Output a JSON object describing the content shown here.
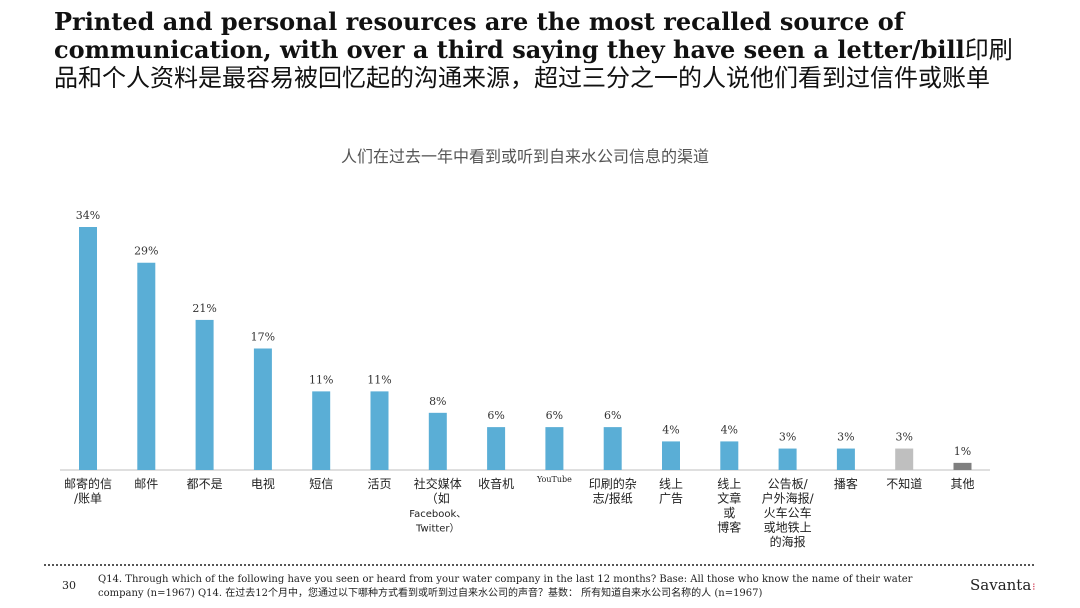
{
  "slide": {
    "title_en": "Printed and personal resources are the most recalled source of communication, with over a third saying they have seen a letter/bill",
    "title_zh": "印刷品和个人资料是最容易被回忆起的沟通来源，超过三分之一的人说他们看到过信件或账单",
    "page_number": "30",
    "footnote": "Q14. Through which of the following have you seen or heard from your water company in the last 12 months? Base: All those who know the name of their water company (n=1967) Q14. 在过去12个月中，您通过以下哪种方式看到或听到过自来水公司的声音？基数： 所有知道自来水公司名称的人 (n=1967)",
    "logo": "Savanta",
    "logo_mark": "⁝"
  },
  "chart_data": {
    "type": "bar",
    "title": "人们在过去一年中看到或听到自来水公司信息的渠道",
    "xlabel": "",
    "ylabel": "",
    "ylim": [
      0,
      34
    ],
    "grid": false,
    "value_suffix": "%",
    "categories": [
      [
        "邮寄的信",
        "/账单"
      ],
      [
        "邮件"
      ],
      [
        "都不是"
      ],
      [
        "电视"
      ],
      [
        "短信"
      ],
      [
        "活页"
      ],
      [
        "社交媒体",
        "（如",
        "Facebook、",
        "Twitter）"
      ],
      [
        "收音机"
      ],
      [
        "YouTube"
      ],
      [
        "印刷的杂",
        "志/报纸"
      ],
      [
        "线上",
        "广告"
      ],
      [
        "线上",
        "文章",
        "或",
        "博客"
      ],
      [
        "公告板/",
        "户外海报/",
        "火车公车",
        "或地铁上",
        "的海报"
      ],
      [
        "播客"
      ],
      [
        "不知道"
      ],
      [
        "其他"
      ]
    ],
    "values": [
      34,
      29,
      21,
      17,
      11,
      11,
      8,
      6,
      6,
      6,
      4,
      4,
      3,
      3,
      3,
      1
    ],
    "colors": [
      "#5aaed6",
      "#5aaed6",
      "#5aaed6",
      "#5aaed6",
      "#5aaed6",
      "#5aaed6",
      "#5aaed6",
      "#5aaed6",
      "#5aaed6",
      "#5aaed6",
      "#5aaed6",
      "#5aaed6",
      "#5aaed6",
      "#5aaed6",
      "#bfbfbf",
      "#7f7f7f"
    ]
  }
}
